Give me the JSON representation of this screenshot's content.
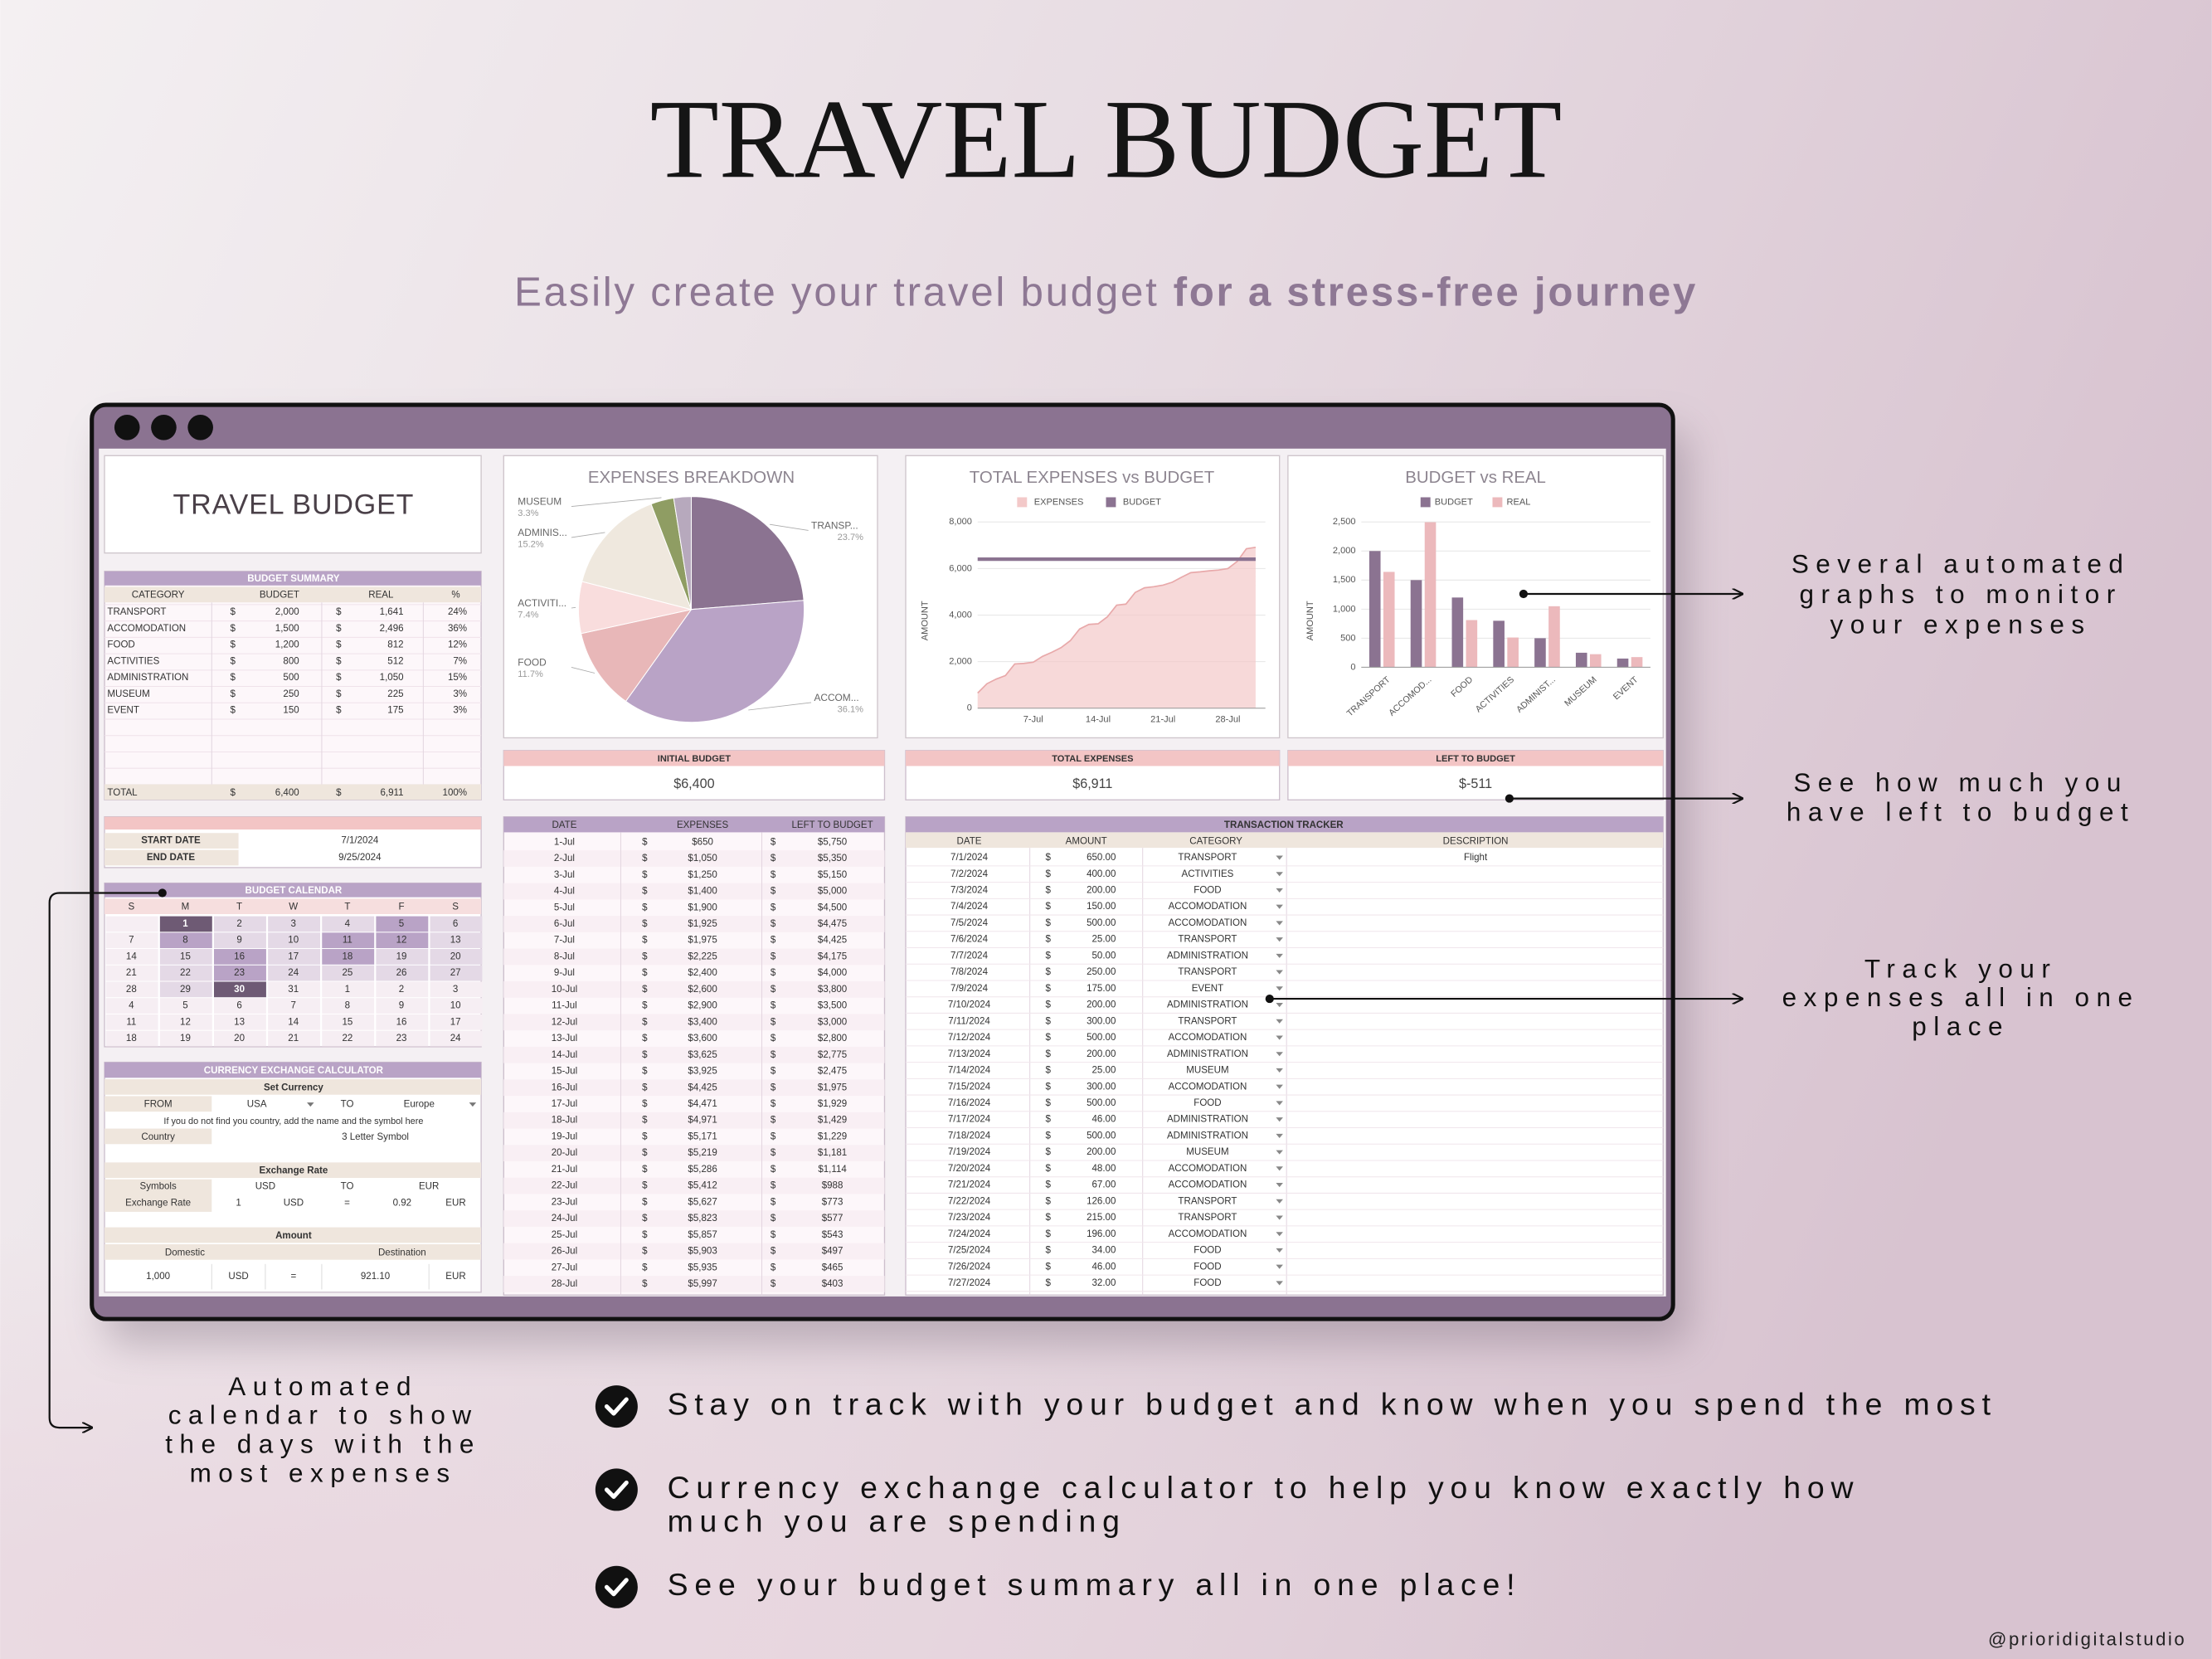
{
  "header": {
    "title": "TRAVEL BUDGET",
    "subtitle": {
      "regular": "Easily create your travel budget",
      "bold": "for a stress-free journey"
    }
  },
  "sheet": {
    "title": "TRAVEL BUDGET",
    "currency": "$",
    "summary": {
      "title": "BUDGET SUMMARY",
      "columns": [
        "CATEGORY",
        "BUDGET",
        "REAL",
        "%"
      ],
      "rows": [
        [
          "TRANSPORT",
          "2,000",
          "1,641",
          "24%"
        ],
        [
          "ACCOMODATION",
          "1,500",
          "2,496",
          "36%"
        ],
        [
          "FOOD",
          "1,200",
          "812",
          "12%"
        ],
        [
          "ACTIVITIES",
          "800",
          "512",
          "7%"
        ],
        [
          "ADMINISTRATION",
          "500",
          "1,050",
          "15%"
        ],
        [
          "MUSEUM",
          "250",
          "225",
          "3%"
        ],
        [
          "EVENT",
          "150",
          "175",
          "3%"
        ]
      ],
      "total": [
        "TOTAL",
        "6,400",
        "6,911",
        "100%"
      ]
    },
    "kpis": [
      {
        "label": "INITIAL BUDGET",
        "value": "$6,400"
      },
      {
        "label": "TOTAL EXPENSES",
        "value": "$6,911"
      },
      {
        "label": "LEFT TO BUDGET",
        "value": "$-511"
      }
    ],
    "dates": [
      [
        "START DATE",
        "7/1/2024"
      ],
      [
        "END DATE",
        "9/25/2024"
      ]
    ],
    "calendar": {
      "title": "BUDGET CALENDAR",
      "weekdays": [
        "S",
        "M",
        "T",
        "W",
        "T",
        "F",
        "S"
      ],
      "weeks": [
        [
          null,
          "1",
          "2",
          "3",
          "4",
          "5",
          "6"
        ],
        [
          "7",
          "8",
          "9",
          "10",
          "11",
          "12",
          "13"
        ],
        [
          "14",
          "15",
          "16",
          "17",
          "18",
          "19",
          "20"
        ],
        [
          "21",
          "22",
          "23",
          "24",
          "25",
          "26",
          "27"
        ],
        [
          "28",
          "29",
          "30",
          "31",
          "1",
          "2",
          "3"
        ],
        [
          "4",
          "5",
          "6",
          "7",
          "8",
          "9",
          "10"
        ],
        [
          "11",
          "12",
          "13",
          "14",
          "15",
          "16",
          "17"
        ],
        [
          "18",
          "19",
          "20",
          "21",
          "22",
          "23",
          "24"
        ]
      ],
      "shade": [
        [
          0,
          3,
          1,
          1,
          1,
          2,
          1
        ],
        [
          0,
          2,
          1,
          1,
          2,
          2,
          1
        ],
        [
          0,
          1,
          2,
          1,
          2,
          1,
          1
        ],
        [
          0,
          1,
          2,
          1,
          1,
          1,
          1
        ],
        [
          0,
          1,
          3,
          0,
          0,
          0,
          0
        ],
        [
          0,
          0,
          0,
          0,
          0,
          0,
          0
        ],
        [
          0,
          0,
          0,
          0,
          0,
          0,
          0
        ],
        [
          0,
          0,
          0,
          0,
          0,
          0,
          0
        ]
      ],
      "colors": [
        "#f6eef3",
        "#e4d9e6",
        "#b9a3c6",
        "#6e5a74"
      ]
    },
    "currency_calculator": {
      "title": "CURRENCY EXCHANGE CALCULATOR",
      "set_currency": "Set Currency",
      "from_row": [
        "FROM",
        "USA",
        "TO",
        "Europe"
      ],
      "note": "If you do not find you country, add the name and the symbol here",
      "country_row": [
        "Country",
        "3 Letter Symbol"
      ],
      "rate_title": "Exchange Rate",
      "symbols_row": [
        "Symbols",
        "USD",
        "TO",
        "EUR"
      ],
      "rate_row": [
        "Exchange Rate",
        "1",
        "USD",
        "=",
        "0.92",
        "EUR"
      ],
      "amount_title": "Amount",
      "amount_header": [
        "Domestic",
        "Destination"
      ],
      "amount_row": [
        "1,000",
        "USD",
        "=",
        "921.10",
        "EUR"
      ]
    },
    "daily": {
      "columns": [
        "DATE",
        "EXPENSES",
        "LEFT TO BUDGET"
      ],
      "rows": [
        [
          "1-Jul",
          "$650",
          "$5,750"
        ],
        [
          "2-Jul",
          "$1,050",
          "$5,350"
        ],
        [
          "3-Jul",
          "$1,250",
          "$5,150"
        ],
        [
          "4-Jul",
          "$1,400",
          "$5,000"
        ],
        [
          "5-Jul",
          "$1,900",
          "$4,500"
        ],
        [
          "6-Jul",
          "$1,925",
          "$4,475"
        ],
        [
          "7-Jul",
          "$1,975",
          "$4,425"
        ],
        [
          "8-Jul",
          "$2,225",
          "$4,175"
        ],
        [
          "9-Jul",
          "$2,400",
          "$4,000"
        ],
        [
          "10-Jul",
          "$2,600",
          "$3,800"
        ],
        [
          "11-Jul",
          "$2,900",
          "$3,500"
        ],
        [
          "12-Jul",
          "$3,400",
          "$3,000"
        ],
        [
          "13-Jul",
          "$3,600",
          "$2,800"
        ],
        [
          "14-Jul",
          "$3,625",
          "$2,775"
        ],
        [
          "15-Jul",
          "$3,925",
          "$2,475"
        ],
        [
          "16-Jul",
          "$4,425",
          "$1,975"
        ],
        [
          "17-Jul",
          "$4,471",
          "$1,929"
        ],
        [
          "18-Jul",
          "$4,971",
          "$1,429"
        ],
        [
          "19-Jul",
          "$5,171",
          "$1,229"
        ],
        [
          "20-Jul",
          "$5,219",
          "$1,181"
        ],
        [
          "21-Jul",
          "$5,286",
          "$1,114"
        ],
        [
          "22-Jul",
          "$5,412",
          "$988"
        ],
        [
          "23-Jul",
          "$5,627",
          "$773"
        ],
        [
          "24-Jul",
          "$5,823",
          "$577"
        ],
        [
          "25-Jul",
          "$5,857",
          "$543"
        ],
        [
          "26-Jul",
          "$5,903",
          "$497"
        ],
        [
          "27-Jul",
          "$5,935",
          "$465"
        ],
        [
          "28-Jul",
          "$5,997",
          "$403"
        ]
      ]
    },
    "transactions": {
      "title": "TRANSACTION TRACKER",
      "columns": [
        "DATE",
        "AMOUNT",
        "CATEGORY",
        "DESCRIPTION"
      ],
      "rows": [
        [
          "7/1/2024",
          "650.00",
          "TRANSPORT",
          "Flight"
        ],
        [
          "7/2/2024",
          "400.00",
          "ACTIVITIES"
        ],
        [
          "7/3/2024",
          "200.00",
          "FOOD"
        ],
        [
          "7/4/2024",
          "150.00",
          "ACCOMODATION"
        ],
        [
          "7/5/2024",
          "500.00",
          "ACCOMODATION"
        ],
        [
          "7/6/2024",
          "25.00",
          "TRANSPORT"
        ],
        [
          "7/7/2024",
          "50.00",
          "ADMINISTRATION"
        ],
        [
          "7/8/2024",
          "250.00",
          "TRANSPORT"
        ],
        [
          "7/9/2024",
          "175.00",
          "EVENT"
        ],
        [
          "7/10/2024",
          "200.00",
          "ADMINISTRATION"
        ],
        [
          "7/11/2024",
          "300.00",
          "TRANSPORT"
        ],
        [
          "7/12/2024",
          "500.00",
          "ACCOMODATION"
        ],
        [
          "7/13/2024",
          "200.00",
          "ADMINISTRATION"
        ],
        [
          "7/14/2024",
          "25.00",
          "MUSEUM"
        ],
        [
          "7/15/2024",
          "300.00",
          "ACCOMODATION"
        ],
        [
          "7/16/2024",
          "500.00",
          "FOOD"
        ],
        [
          "7/17/2024",
          "46.00",
          "ADMINISTRATION"
        ],
        [
          "7/18/2024",
          "500.00",
          "ADMINISTRATION"
        ],
        [
          "7/19/2024",
          "200.00",
          "MUSEUM"
        ],
        [
          "7/20/2024",
          "48.00",
          "ACCOMODATION"
        ],
        [
          "7/21/2024",
          "67.00",
          "ACCOMODATION"
        ],
        [
          "7/22/2024",
          "126.00",
          "TRANSPORT"
        ],
        [
          "7/23/2024",
          "215.00",
          "TRANSPORT"
        ],
        [
          "7/24/2024",
          "196.00",
          "ACCOMODATION"
        ],
        [
          "7/25/2024",
          "34.00",
          "FOOD"
        ],
        [
          "7/26/2024",
          "46.00",
          "FOOD"
        ],
        [
          "7/27/2024",
          "32.00",
          "FOOD"
        ]
      ]
    }
  },
  "chart_data": [
    {
      "type": "pie",
      "title": "EXPENSES BREAKDOWN",
      "categories": [
        "TRANSP...",
        "ACCOM...",
        "FOOD",
        "ACTIVITI...",
        "ADMINIS...",
        "MUSEUM",
        null
      ],
      "values": [
        23.7,
        36.1,
        11.7,
        7.4,
        15.2,
        3.3,
        2.5
      ],
      "value_labels": [
        "23.7%",
        "36.1%",
        "11.7%",
        "7.4%",
        "15.2%",
        "3.3%",
        null
      ],
      "colors": [
        "#8b7391",
        "#b9a3c6",
        "#e8b7b8",
        "#f9dddd",
        "#efe8de",
        "#8f9d63",
        "#b7a9bd"
      ]
    },
    {
      "type": "line",
      "title": "TOTAL EXPENSES vs BUDGET",
      "ylabel": "AMOUNT",
      "categories": [
        null,
        null,
        null,
        null,
        null,
        null,
        "7-Jul",
        null,
        null,
        null,
        null,
        null,
        null,
        "14-Jul",
        null,
        null,
        null,
        null,
        null,
        null,
        "21-Jul",
        null,
        null,
        null,
        null,
        null,
        null,
        "28-Jul",
        null,
        null,
        null
      ],
      "series": [
        {
          "name": "EXPENSES",
          "color": "#f3c9c9",
          "values": [
            650,
            1050,
            1250,
            1400,
            1900,
            1925,
            1975,
            2225,
            2400,
            2600,
            2900,
            3400,
            3600,
            3625,
            3925,
            4425,
            4471,
            4971,
            5171,
            5219,
            5286,
            5412,
            5627,
            5823,
            5857,
            5903,
            5935,
            5997,
            6300,
            6850,
            6911
          ]
        },
        {
          "name": "BUDGET",
          "color": "#8b7391",
          "values": [
            6400,
            6400,
            6400,
            6400,
            6400,
            6400,
            6400,
            6400,
            6400,
            6400,
            6400,
            6400,
            6400,
            6400,
            6400,
            6400,
            6400,
            6400,
            6400,
            6400,
            6400,
            6400,
            6400,
            6400,
            6400,
            6400,
            6400,
            6400,
            6400,
            6400,
            6400
          ]
        }
      ],
      "ylim": [
        0,
        8000
      ],
      "yticks": [
        0,
        {
          "value": 2000,
          "label": "2,000"
        },
        {
          "value": 4000,
          "label": "4,000"
        },
        {
          "value": 6000,
          "label": "6,000"
        },
        {
          "value": 8000,
          "label": "8,000"
        }
      ],
      "grid": true
    },
    {
      "type": "bar",
      "title": "BUDGET vs REAL",
      "ylabel": "AMOUNT",
      "categories": [
        "TRANSPORT",
        "ACCOMOD...",
        "FOOD",
        "ACTIVITIES",
        "ADMINIST...",
        "MUSEUM",
        "EVENT"
      ],
      "series": [
        {
          "name": "BUDGET",
          "color": "#8b7391",
          "values": [
            2000,
            1500,
            1200,
            800,
            500,
            250,
            150
          ]
        },
        {
          "name": "REAL",
          "color": "#ecb9bc",
          "values": [
            1641,
            2496,
            812,
            512,
            1050,
            225,
            175
          ]
        }
      ],
      "ylim": [
        0,
        2500
      ],
      "yticks": [
        0,
        500,
        {
          "value": 1000,
          "label": "1,000"
        },
        {
          "value": 1500,
          "label": "1,500"
        },
        {
          "value": 2000,
          "label": "2,000"
        },
        {
          "value": 2500,
          "label": "2,500"
        }
      ],
      "grid": true
    }
  ],
  "callouts": [
    {
      "lines": [
        "Several automated",
        "graphs to monitor",
        "your expenses"
      ]
    },
    {
      "lines": [
        "See how much you",
        "have left to budget"
      ]
    },
    {
      "lines": [
        "Track your",
        "expenses all in one",
        "place"
      ]
    },
    {
      "lines": [
        "Automated",
        "calendar to show",
        "the days with the",
        "most expenses"
      ]
    }
  ],
  "features": [
    {
      "lines": [
        "Stay on track with your budget and know when you spend the most"
      ]
    },
    {
      "lines": [
        "Currency exchange calculator to help you know exactly how",
        "much you are spending"
      ]
    },
    {
      "lines": [
        "See your budget summary all in one place!"
      ]
    }
  ],
  "credit": "@prioridigitalstudio"
}
